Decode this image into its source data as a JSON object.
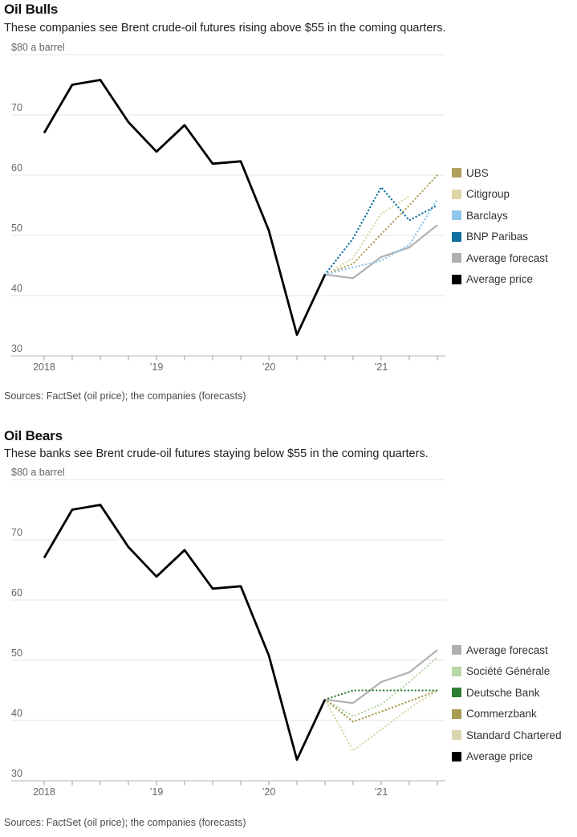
{
  "page": {
    "background": "#ffffff"
  },
  "chart_data": [
    {
      "type": "line",
      "title": "Oil Bulls",
      "subtitle": "These companies see Brent crude-oil futures rising above $55 in the coming quarters.",
      "source": "Sources: FactSet (oil price); the companies (forecasts)",
      "unit_label": "$80 a barrel",
      "ylim": [
        30,
        80
      ],
      "grid": "horizontal",
      "legend_position": "right",
      "yticks": [
        {
          "value": 80,
          "label": "$80 a barrel"
        },
        {
          "value": 70,
          "label": "70"
        },
        {
          "value": 60,
          "label": "60"
        },
        {
          "value": 50,
          "label": "50"
        },
        {
          "value": 40,
          "label": "40"
        },
        {
          "value": 30,
          "label": "30"
        }
      ],
      "xticks": [
        {
          "x": 2018.0,
          "label": "2018"
        },
        {
          "x": 2019.0,
          "label": "’19"
        },
        {
          "x": 2020.0,
          "label": "’20"
        },
        {
          "x": 2021.0,
          "label": "’21"
        }
      ],
      "xrange": [
        2018.0,
        2021.5
      ],
      "series": [
        {
          "name": "Average forecast",
          "color": "#b0b0b0",
          "style": "solid",
          "width": 2.2,
          "x": [
            2020.5,
            2020.75,
            2021.0,
            2021.25,
            2021.5
          ],
          "values": [
            43.5,
            42.9,
            46.4,
            48.0,
            51.7
          ]
        },
        {
          "name": "UBS",
          "color": "#b2a05e",
          "style": "dotted",
          "width": 2.3,
          "x": [
            2020.5,
            2020.75,
            2021.0,
            2021.25,
            2021.5
          ],
          "values": [
            43.5,
            45.3,
            50.2,
            55.0,
            60.0
          ]
        },
        {
          "name": "Citigroup",
          "color": "#ded5a7",
          "style": "dotted",
          "width": 2.3,
          "x": [
            2020.5,
            2020.75,
            2021.0,
            2021.25
          ],
          "values": [
            43.5,
            46.2,
            53.6,
            56.5
          ]
        },
        {
          "name": "Barclays",
          "color": "#8fc6ec",
          "style": "dotted",
          "width": 2.3,
          "x": [
            2020.5,
            2020.75,
            2021.0,
            2021.25,
            2021.5
          ],
          "values": [
            43.5,
            44.7,
            45.8,
            48.4,
            56.0
          ]
        },
        {
          "name": "BNP Paribas",
          "color": "#0f709e",
          "style": "dotted",
          "width": 2.3,
          "x": [
            2020.5,
            2020.75,
            2021.0,
            2021.25,
            2021.5
          ],
          "values": [
            43.5,
            49.5,
            58.0,
            52.5,
            55.0
          ]
        },
        {
          "name": "Average price",
          "color": "#000000",
          "style": "solid",
          "width": 2.8,
          "x": [
            2018.0,
            2018.25,
            2018.5,
            2018.75,
            2019.0,
            2019.25,
            2019.5,
            2019.75,
            2020.0,
            2020.25,
            2020.5
          ],
          "values": [
            67.0,
            75.0,
            75.8,
            68.8,
            63.9,
            68.3,
            61.9,
            62.3,
            50.8,
            33.5,
            43.5
          ]
        }
      ],
      "legend": [
        {
          "label": "UBS",
          "color": "#b2a05e"
        },
        {
          "label": "Citigroup",
          "color": "#ded5a7"
        },
        {
          "label": "Barclays",
          "color": "#8fc6ec"
        },
        {
          "label": "BNP Paribas",
          "color": "#0f709e"
        },
        {
          "label": "Average forecast",
          "color": "#b0b0b0"
        },
        {
          "label": "Average price",
          "color": "#000000"
        }
      ]
    },
    {
      "type": "line",
      "title": "Oil Bears",
      "subtitle": "These banks see Brent crude-oil futures staying below $55 in the coming quarters.",
      "source": "Sources: FactSet (oil price); the companies (forecasts)",
      "unit_label": "$80 a barrel",
      "ylim": [
        30,
        80
      ],
      "grid": "horizontal",
      "legend_position": "right",
      "yticks": [
        {
          "value": 80,
          "label": "$80 a barrel"
        },
        {
          "value": 70,
          "label": "70"
        },
        {
          "value": 60,
          "label": "60"
        },
        {
          "value": 50,
          "label": "50"
        },
        {
          "value": 40,
          "label": "40"
        },
        {
          "value": 30,
          "label": "30"
        }
      ],
      "xticks": [
        {
          "x": 2018.0,
          "label": "2018"
        },
        {
          "x": 2019.0,
          "label": "’19"
        },
        {
          "x": 2020.0,
          "label": "’20"
        },
        {
          "x": 2021.0,
          "label": "’21"
        }
      ],
      "xrange": [
        2018.0,
        2021.5
      ],
      "series": [
        {
          "name": "Average forecast",
          "color": "#b0b0b0",
          "style": "solid",
          "width": 2.2,
          "x": [
            2020.5,
            2020.75,
            2021.0,
            2021.25,
            2021.5
          ],
          "values": [
            43.5,
            42.9,
            46.4,
            48.0,
            51.7
          ]
        },
        {
          "name": "Société Générale",
          "color": "#b6d7a6",
          "style": "dotted",
          "width": 2.3,
          "x": [
            2020.5,
            2020.75,
            2021.0,
            2021.25,
            2021.5
          ],
          "values": [
            43.5,
            40.7,
            42.7,
            46.4,
            50.5
          ]
        },
        {
          "name": "Deutsche Bank",
          "color": "#2e7d33",
          "style": "dotted",
          "width": 2.3,
          "x": [
            2020.5,
            2020.75,
            2021.0,
            2021.25,
            2021.5
          ],
          "values": [
            43.5,
            45.0,
            45.0,
            45.0,
            45.0
          ]
        },
        {
          "name": "Commerzbank",
          "color": "#a89b52",
          "style": "dotted",
          "width": 2.3,
          "x": [
            2020.5,
            2020.75,
            2021.0,
            2021.25,
            2021.5
          ],
          "values": [
            43.5,
            39.8,
            41.5,
            43.2,
            45.0
          ]
        },
        {
          "name": "Standard Chartered",
          "color": "#d9d6ae",
          "style": "dotted",
          "width": 2.3,
          "x": [
            2020.5,
            2020.75,
            2021.0,
            2021.25,
            2021.5
          ],
          "values": [
            43.5,
            35.0,
            38.5,
            42.0,
            45.0
          ]
        },
        {
          "name": "Average price",
          "color": "#000000",
          "style": "solid",
          "width": 2.8,
          "x": [
            2018.0,
            2018.25,
            2018.5,
            2018.75,
            2019.0,
            2019.25,
            2019.5,
            2019.75,
            2020.0,
            2020.25,
            2020.5
          ],
          "values": [
            67.0,
            75.0,
            75.8,
            68.8,
            63.9,
            68.3,
            61.9,
            62.3,
            50.8,
            33.5,
            43.5
          ]
        }
      ],
      "legend": [
        {
          "label": "Average forecast",
          "color": "#b0b0b0"
        },
        {
          "label": "Société Générale",
          "color": "#b6d7a6"
        },
        {
          "label": "Deutsche Bank",
          "color": "#2e7d33"
        },
        {
          "label": "Commerzbank",
          "color": "#a89b52"
        },
        {
          "label": "Standard Chartered",
          "color": "#d9d6ae"
        },
        {
          "label": "Average price",
          "color": "#000000"
        }
      ]
    }
  ]
}
